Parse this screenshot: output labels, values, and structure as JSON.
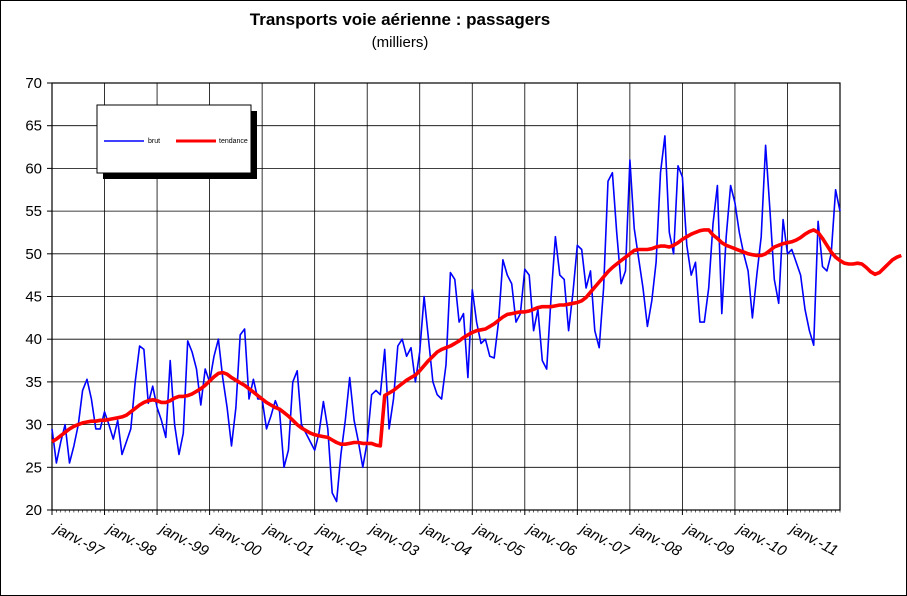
{
  "chart_data": {
    "type": "line",
    "title": "Transports voie aérienne : passagers",
    "subtitle": "(milliers)",
    "ylim": [
      20,
      70
    ],
    "yticks": [
      "20",
      "25",
      "30",
      "35",
      "40",
      "45",
      "50",
      "55",
      "60",
      "65",
      "70"
    ],
    "x_tick_labels": [
      "janv.-97",
      "janv.-98",
      "janv.-99",
      "janv.-00",
      "janv.-01",
      "janv.-02",
      "janv.-03",
      "janv.-04",
      "janv.-05",
      "janv.-06",
      "janv.-07",
      "janv.-08",
      "janv.-09",
      "janv.-10",
      "janv.-11"
    ],
    "x_start": "1997-01",
    "x_end": "2011-12",
    "grid": true,
    "legend_position": "top-left",
    "series": [
      {
        "name": "brut",
        "color": "#0000ff",
        "values": [
          29.5,
          25.5,
          28.0,
          30.0,
          25.5,
          27.5,
          30.0,
          34.0,
          35.3,
          33.0,
          29.5,
          29.5,
          31.5,
          30.0,
          28.3,
          30.5,
          26.5,
          28.0,
          29.5,
          35.0,
          39.2,
          38.8,
          32.5,
          34.5,
          32.0,
          30.5,
          28.5,
          37.5,
          30.0,
          26.5,
          29.0,
          39.8,
          38.5,
          36.5,
          32.3,
          36.5,
          35.0,
          38.0,
          40.0,
          35.5,
          32.0,
          27.5,
          32.0,
          40.5,
          41.2,
          33.0,
          35.3,
          33.0,
          33.0,
          29.5,
          31.0,
          32.8,
          31.5,
          25.0,
          27.0,
          35.0,
          36.3,
          30.0,
          29.0,
          28.0,
          27.0,
          29.0,
          32.7,
          29.5,
          22.0,
          21.0,
          26.5,
          30.5,
          35.5,
          30.5,
          28.0,
          25.0,
          28.0,
          33.5,
          34.0,
          33.5,
          38.8,
          29.5,
          33.0,
          39.2,
          40.0,
          38.0,
          39.0,
          35.0,
          38.5,
          45.0,
          40.0,
          35.0,
          33.5,
          33.0,
          37.0,
          47.8,
          47.0,
          42.0,
          43.0,
          35.5,
          45.8,
          42.0,
          39.5,
          40.0,
          38.0,
          37.8,
          42.0,
          49.3,
          47.5,
          46.5,
          42.0,
          43.0,
          48.2,
          47.5,
          41.0,
          43.5,
          37.5,
          36.5,
          45.0,
          52.0,
          47.5,
          47.0,
          41.0,
          45.5,
          51.0,
          50.5,
          46.0,
          48.0,
          41.0,
          39.0,
          46.0,
          58.5,
          59.5,
          52.5,
          46.5,
          48.0,
          61.0,
          53.0,
          49.5,
          46.0,
          41.5,
          44.5,
          49.0,
          59.5,
          63.8,
          52.5,
          50.0,
          60.3,
          59.0,
          51.0,
          47.5,
          49.0,
          42.0,
          42.0,
          46.0,
          53.5,
          58.0,
          43.0,
          52.0,
          58.0,
          56.0,
          52.5,
          50.0,
          48.0,
          42.5,
          47.5,
          52.0,
          62.7,
          55.0,
          47.0,
          44.2,
          54.0,
          50.0,
          50.5,
          49.0,
          47.5,
          43.5,
          41.0,
          39.3,
          53.8,
          48.5,
          48.0,
          50.0,
          57.5,
          55.0
        ]
      },
      {
        "name": "tendance",
        "color": "#ff0000",
        "values": [
          28.0,
          28.3,
          28.7,
          29.1,
          29.5,
          29.8,
          30.0,
          30.2,
          30.3,
          30.4,
          30.4,
          30.5,
          30.5,
          30.6,
          30.7,
          30.8,
          30.9,
          31.1,
          31.5,
          31.9,
          32.3,
          32.6,
          32.8,
          32.9,
          32.8,
          32.6,
          32.6,
          32.8,
          33.1,
          33.3,
          33.3,
          33.4,
          33.6,
          33.9,
          34.2,
          34.6,
          35.1,
          35.6,
          36.0,
          36.1,
          35.9,
          35.5,
          35.2,
          34.9,
          34.6,
          34.2,
          33.8,
          33.4,
          33.0,
          32.6,
          32.3,
          32.0,
          31.8,
          31.4,
          31.0,
          30.5,
          30.0,
          29.6,
          29.3,
          29.0,
          28.8,
          28.7,
          28.6,
          28.5,
          28.2,
          27.9,
          27.7,
          27.7,
          27.8,
          27.9,
          27.9,
          27.8,
          27.8,
          27.8,
          27.6,
          27.5,
          33.4,
          33.7,
          34.0,
          34.4,
          34.8,
          35.2,
          35.5,
          35.8,
          36.3,
          36.9,
          37.5,
          38.0,
          38.5,
          38.8,
          39.0,
          39.2,
          39.5,
          39.8,
          40.2,
          40.5,
          40.8,
          41.0,
          41.1,
          41.2,
          41.5,
          41.8,
          42.2,
          42.6,
          42.9,
          43.0,
          43.1,
          43.2,
          43.2,
          43.3,
          43.5,
          43.7,
          43.8,
          43.8,
          43.8,
          43.9,
          44.0,
          44.0,
          44.1,
          44.2,
          44.3,
          44.5,
          44.9,
          45.5,
          46.1,
          46.7,
          47.3,
          47.9,
          48.4,
          48.8,
          49.2,
          49.6,
          50.0,
          50.4,
          50.5,
          50.5,
          50.5,
          50.6,
          50.8,
          50.9,
          50.9,
          50.8,
          51.0,
          51.3,
          51.7,
          52.0,
          52.3,
          52.5,
          52.7,
          52.8,
          52.8,
          52.2,
          51.8,
          51.3,
          51.0,
          50.8,
          50.6,
          50.4,
          50.2,
          50.0,
          49.9,
          49.8,
          49.8,
          50.0,
          50.4,
          50.8,
          51.0,
          51.2,
          51.3,
          51.4,
          51.6,
          51.9,
          52.3,
          52.6,
          52.8,
          52.5,
          51.8,
          51.0,
          50.2,
          49.6,
          49.2,
          48.9,
          48.8,
          48.8,
          48.9,
          48.8,
          48.4,
          47.9,
          47.6,
          47.8,
          48.3,
          48.8,
          49.3,
          49.6,
          49.8
        ]
      }
    ]
  }
}
